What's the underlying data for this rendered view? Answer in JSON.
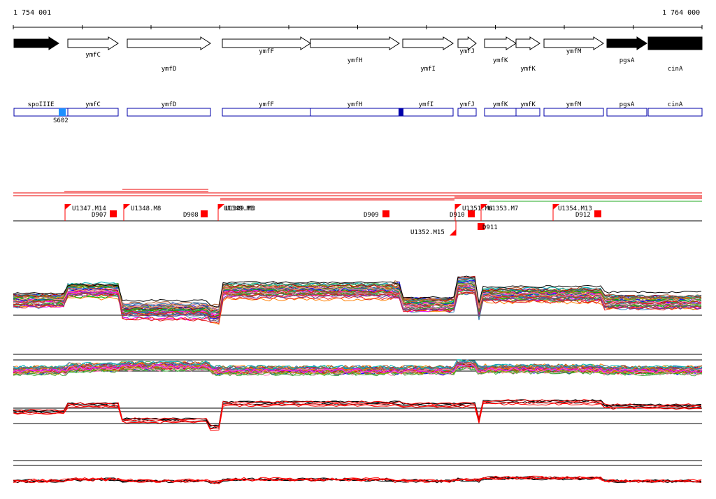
{
  "ruler": {
    "start_label": "1 754 001",
    "end_label": "1 764 000",
    "start": 1754001,
    "end": 1764000
  },
  "colors": {
    "gene_fill": "#000000",
    "annotation_stroke": "#0000aa",
    "marker": "#ff0000",
    "accent_light": "#1e90ff",
    "accent_dark": "#0000aa",
    "profile_red": "#ff0000",
    "line_green": "#22aa22"
  },
  "genes": [
    {
      "name": "spoIIIE",
      "strand": "+",
      "filled": true
    },
    {
      "name": "ymfC",
      "strand": "+",
      "filled": false
    },
    {
      "name": "ymfD",
      "strand": "+",
      "filled": false
    },
    {
      "name": "ymfF",
      "strand": "+",
      "filled": false
    },
    {
      "name": "ymfH",
      "strand": "+",
      "filled": false
    },
    {
      "name": "ymfI",
      "strand": "+",
      "filled": false
    },
    {
      "name": "ymfJ",
      "strand": "+",
      "filled": false
    },
    {
      "name": "ymfK",
      "strand": "+",
      "filled": false
    },
    {
      "name": "ymfK",
      "strand": "+",
      "filled": false
    },
    {
      "name": "ymfM",
      "strand": "+",
      "filled": false
    },
    {
      "name": "pgsA",
      "strand": "+",
      "filled": true
    },
    {
      "name": "cinA",
      "strand": "-",
      "filled": true
    }
  ],
  "annotation_boxes": [
    {
      "name": "spoIIIE"
    },
    {
      "name": "ymfC"
    },
    {
      "name": "ymfD"
    },
    {
      "name": "ymfF"
    },
    {
      "name": "ymfH"
    },
    {
      "name": "ymfI"
    },
    {
      "name": "ymfJ"
    },
    {
      "name": "ymfK"
    },
    {
      "name": "ymfK"
    },
    {
      "name": "ymfM"
    },
    {
      "name": "pgsA"
    },
    {
      "name": "cinA"
    }
  ],
  "features": [
    {
      "label": "S602",
      "color": "light"
    },
    {
      "label": "",
      "color": "dark"
    }
  ],
  "markers_up": [
    {
      "label": "U1347.M14"
    },
    {
      "label": "U1348.M8"
    },
    {
      "label": "U1349.M3"
    },
    {
      "label": "U1351.M6"
    },
    {
      "label": "U1353.M7"
    },
    {
      "label": "U1354.M13"
    }
  ],
  "markers_down": [
    {
      "label": "D907"
    },
    {
      "label": "D908"
    },
    {
      "label": "D909"
    },
    {
      "label": "D910"
    },
    {
      "label": "D911"
    },
    {
      "label": "D912"
    },
    {
      "label": "U1352.M15"
    }
  ],
  "tracks": [
    {
      "name": "multi-profile-main",
      "type": "multi-color"
    },
    {
      "name": "multi-profile-flat",
      "type": "multi-color"
    },
    {
      "name": "black-red-profile-1",
      "type": "black-red"
    },
    {
      "name": "black-red-profile-2",
      "type": "black-red"
    }
  ]
}
